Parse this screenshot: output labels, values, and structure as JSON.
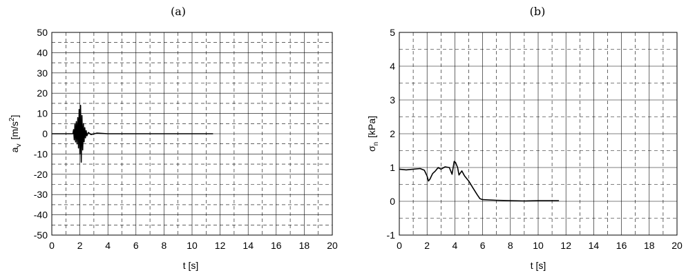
{
  "chart_data": [
    {
      "type": "line",
      "title": "(a)",
      "xlabel": "t [s]",
      "ylabel": {
        "base": "a",
        "sub": "v",
        "unit_pre": "[m/s",
        "sup": "2",
        "unit_post": "]"
      },
      "xlim": [
        0,
        20
      ],
      "ylim": [
        -50,
        50
      ],
      "x_ticks": [
        0,
        2,
        4,
        6,
        8,
        10,
        12,
        14,
        16,
        18,
        20
      ],
      "y_ticks": [
        -50,
        -40,
        -30,
        -20,
        -10,
        0,
        10,
        20,
        30,
        40,
        50
      ],
      "grid": "major solid, minor dashed",
      "series": [
        {
          "x": [
            0,
            1.5,
            1.55,
            1.6,
            1.65,
            1.7,
            1.75,
            1.8,
            1.85,
            1.9,
            1.95,
            2.0,
            2.05,
            2.1,
            2.15,
            2.2,
            2.25,
            2.3,
            2.35,
            2.4,
            2.45,
            2.5,
            2.6,
            2.8,
            3.2,
            4.0,
            6.0,
            8.0,
            10.0,
            11.5
          ],
          "y": [
            0,
            0,
            2,
            -3,
            5,
            -4,
            6,
            -5,
            8,
            -7,
            12,
            -10,
            14,
            -14,
            9,
            -8,
            5,
            -4,
            3,
            -2,
            1.5,
            -1,
            0.6,
            -0.4,
            0.3,
            0,
            0,
            0,
            0,
            0
          ]
        }
      ]
    },
    {
      "type": "line",
      "title": "(b)",
      "xlabel": "t [s]",
      "ylabel": {
        "base": "σ",
        "sub": "n",
        "unit_pre": "[kPa]",
        "sup": "",
        "unit_post": ""
      },
      "xlim": [
        0,
        20
      ],
      "ylim": [
        -1,
        5
      ],
      "x_ticks": [
        0,
        2,
        4,
        6,
        8,
        10,
        12,
        14,
        16,
        18,
        20
      ],
      "y_ticks": [
        -1,
        0,
        1,
        2,
        3,
        4,
        5
      ],
      "grid": "major solid, minor dashed",
      "series": [
        {
          "x": [
            0,
            0.5,
            1.0,
            1.5,
            1.8,
            2.0,
            2.1,
            2.2,
            2.4,
            2.6,
            2.8,
            3.0,
            3.3,
            3.6,
            3.8,
            3.95,
            4.05,
            4.2,
            4.3,
            4.5,
            4.7,
            5.0,
            5.3,
            5.6,
            5.8,
            6.0,
            7.0,
            8.0,
            9.0,
            10.0,
            11.5
          ],
          "y": [
            0.95,
            0.93,
            0.95,
            0.97,
            0.92,
            0.75,
            0.6,
            0.65,
            0.82,
            0.9,
            1.0,
            0.95,
            1.02,
            1.0,
            0.8,
            1.18,
            1.15,
            1.0,
            0.78,
            0.9,
            0.75,
            0.6,
            0.4,
            0.2,
            0.08,
            0.05,
            0.03,
            0.02,
            0.01,
            0.02,
            0.02
          ]
        }
      ]
    }
  ]
}
